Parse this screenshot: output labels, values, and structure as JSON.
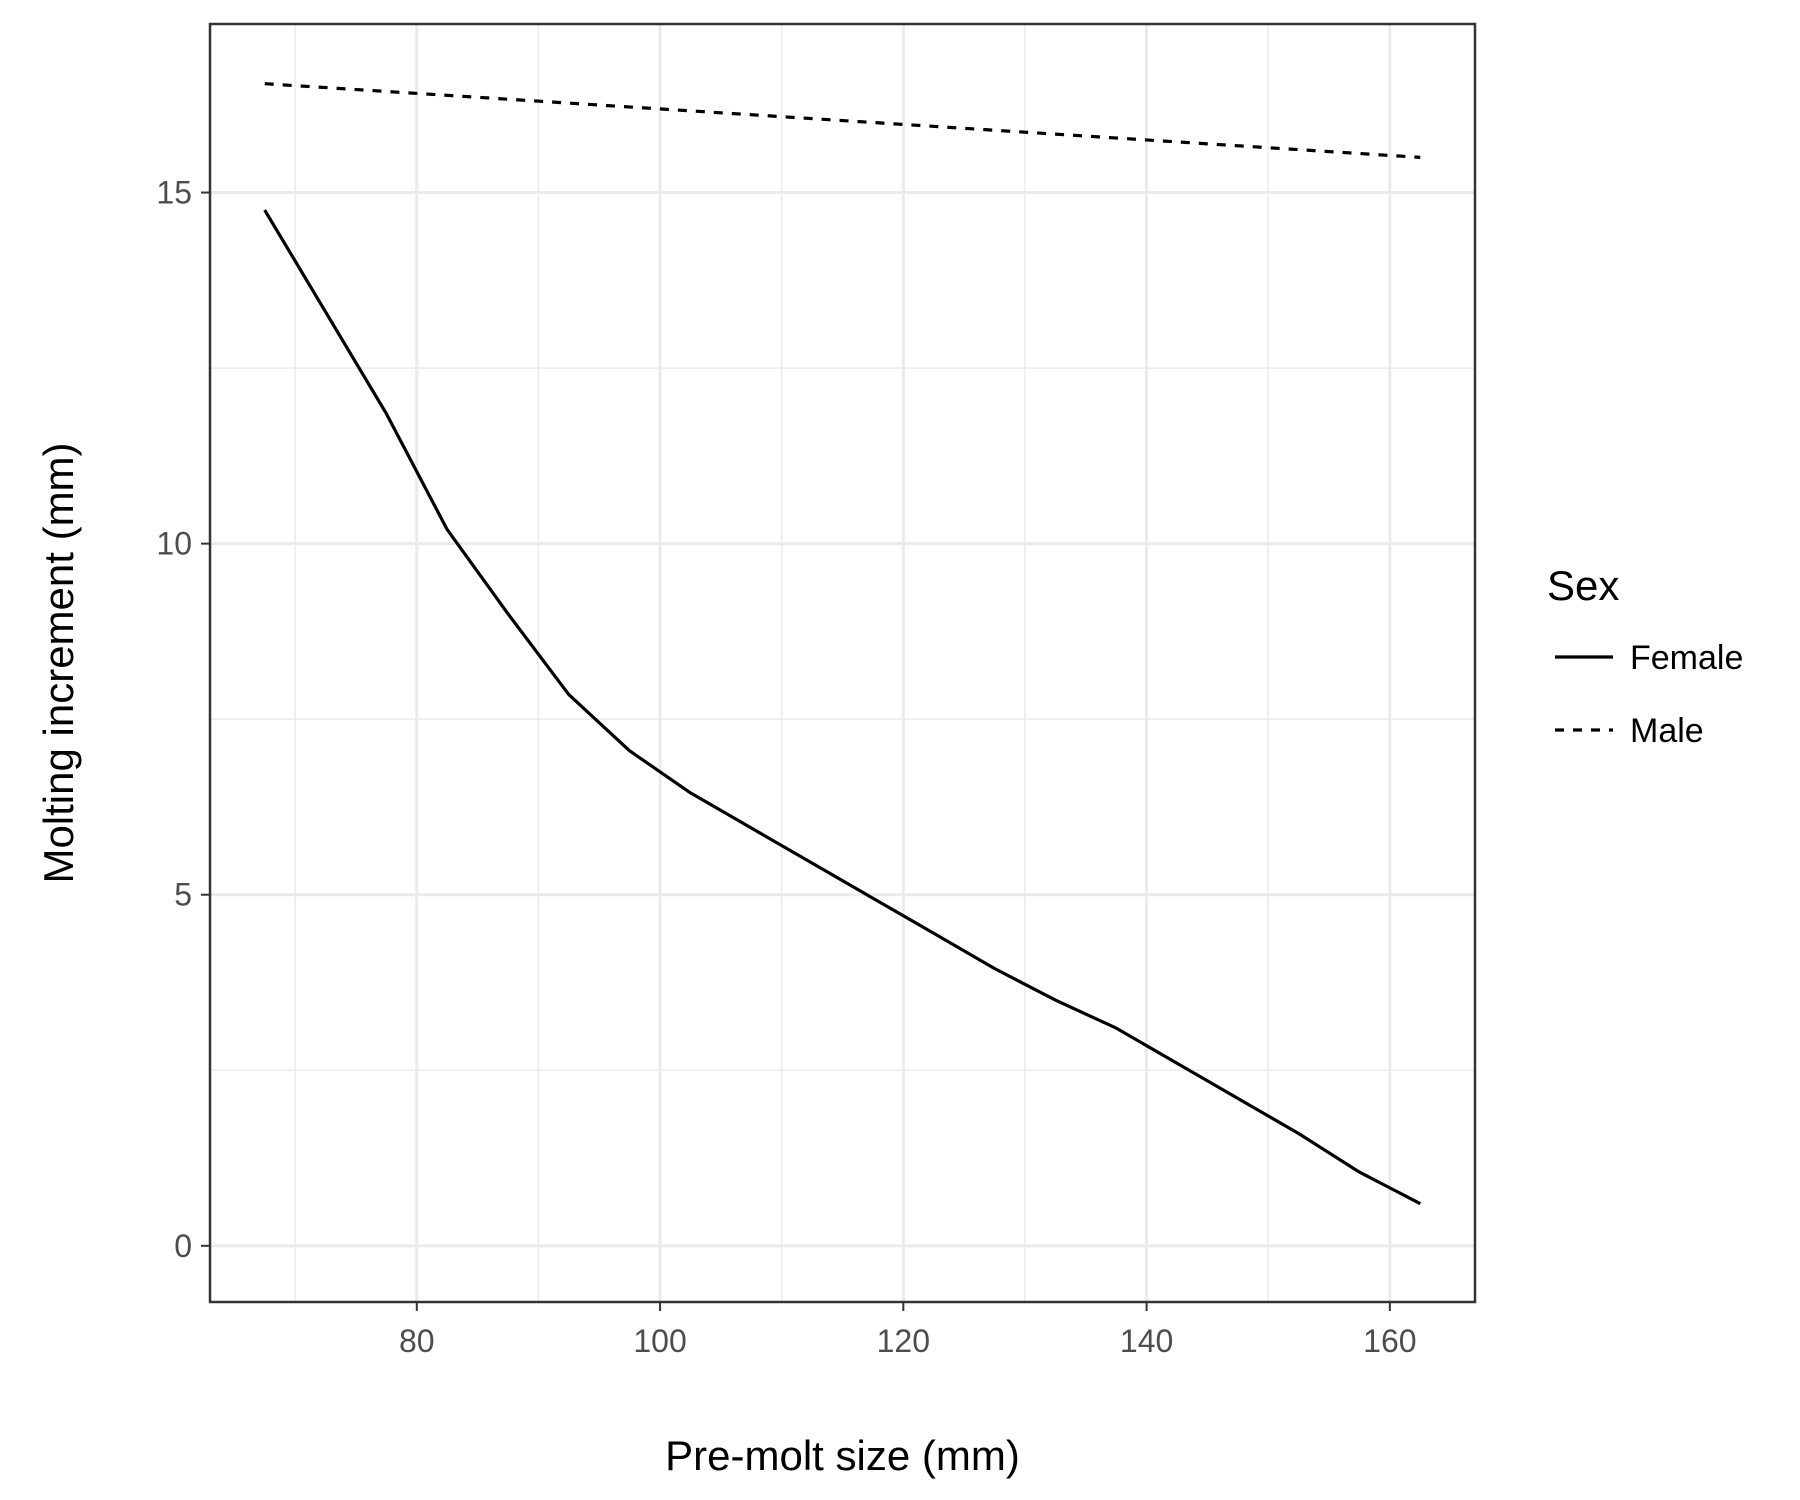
{
  "chart_data": {
    "type": "line",
    "title": "",
    "xlabel": "Pre-molt size (mm)",
    "ylabel": "Molting increment (mm)",
    "xlim": [
      63,
      167
    ],
    "ylim": [
      -0.8,
      17.4
    ],
    "x_major_ticks": [
      80,
      100,
      120,
      140,
      160
    ],
    "x_minor_ticks": [
      70,
      90,
      110,
      130,
      150
    ],
    "y_major_ticks": [
      0,
      5,
      10,
      15
    ],
    "y_minor_ticks": [
      2.5,
      7.5,
      12.5
    ],
    "x_tick_labels": [
      "80",
      "100",
      "120",
      "140",
      "160"
    ],
    "y_tick_labels": [
      "0",
      "5",
      "10",
      "15"
    ],
    "grid": true,
    "legend": {
      "title": "Sex",
      "placement": "right"
    },
    "series": [
      {
        "name": "Female",
        "linestyle": "solid",
        "color": "#000000",
        "x": [
          67.5,
          72.5,
          77.5,
          82.5,
          87.5,
          92.5,
          97.5,
          102.5,
          107.5,
          112.5,
          117.5,
          122.5,
          127.5,
          132.5,
          137.5,
          142.5,
          147.5,
          152.5,
          157.5,
          162.5
        ],
        "y": [
          14.75,
          13.3,
          11.85,
          10.2,
          9.0,
          7.85,
          7.05,
          6.45,
          5.95,
          5.45,
          4.95,
          4.45,
          3.95,
          3.5,
          3.1,
          2.6,
          2.1,
          1.6,
          1.05,
          0.6
        ]
      },
      {
        "name": "Male",
        "linestyle": "dashed",
        "color": "#000000",
        "x": [
          67.5,
          162.5
        ],
        "y": [
          16.55,
          15.5
        ]
      }
    ]
  }
}
